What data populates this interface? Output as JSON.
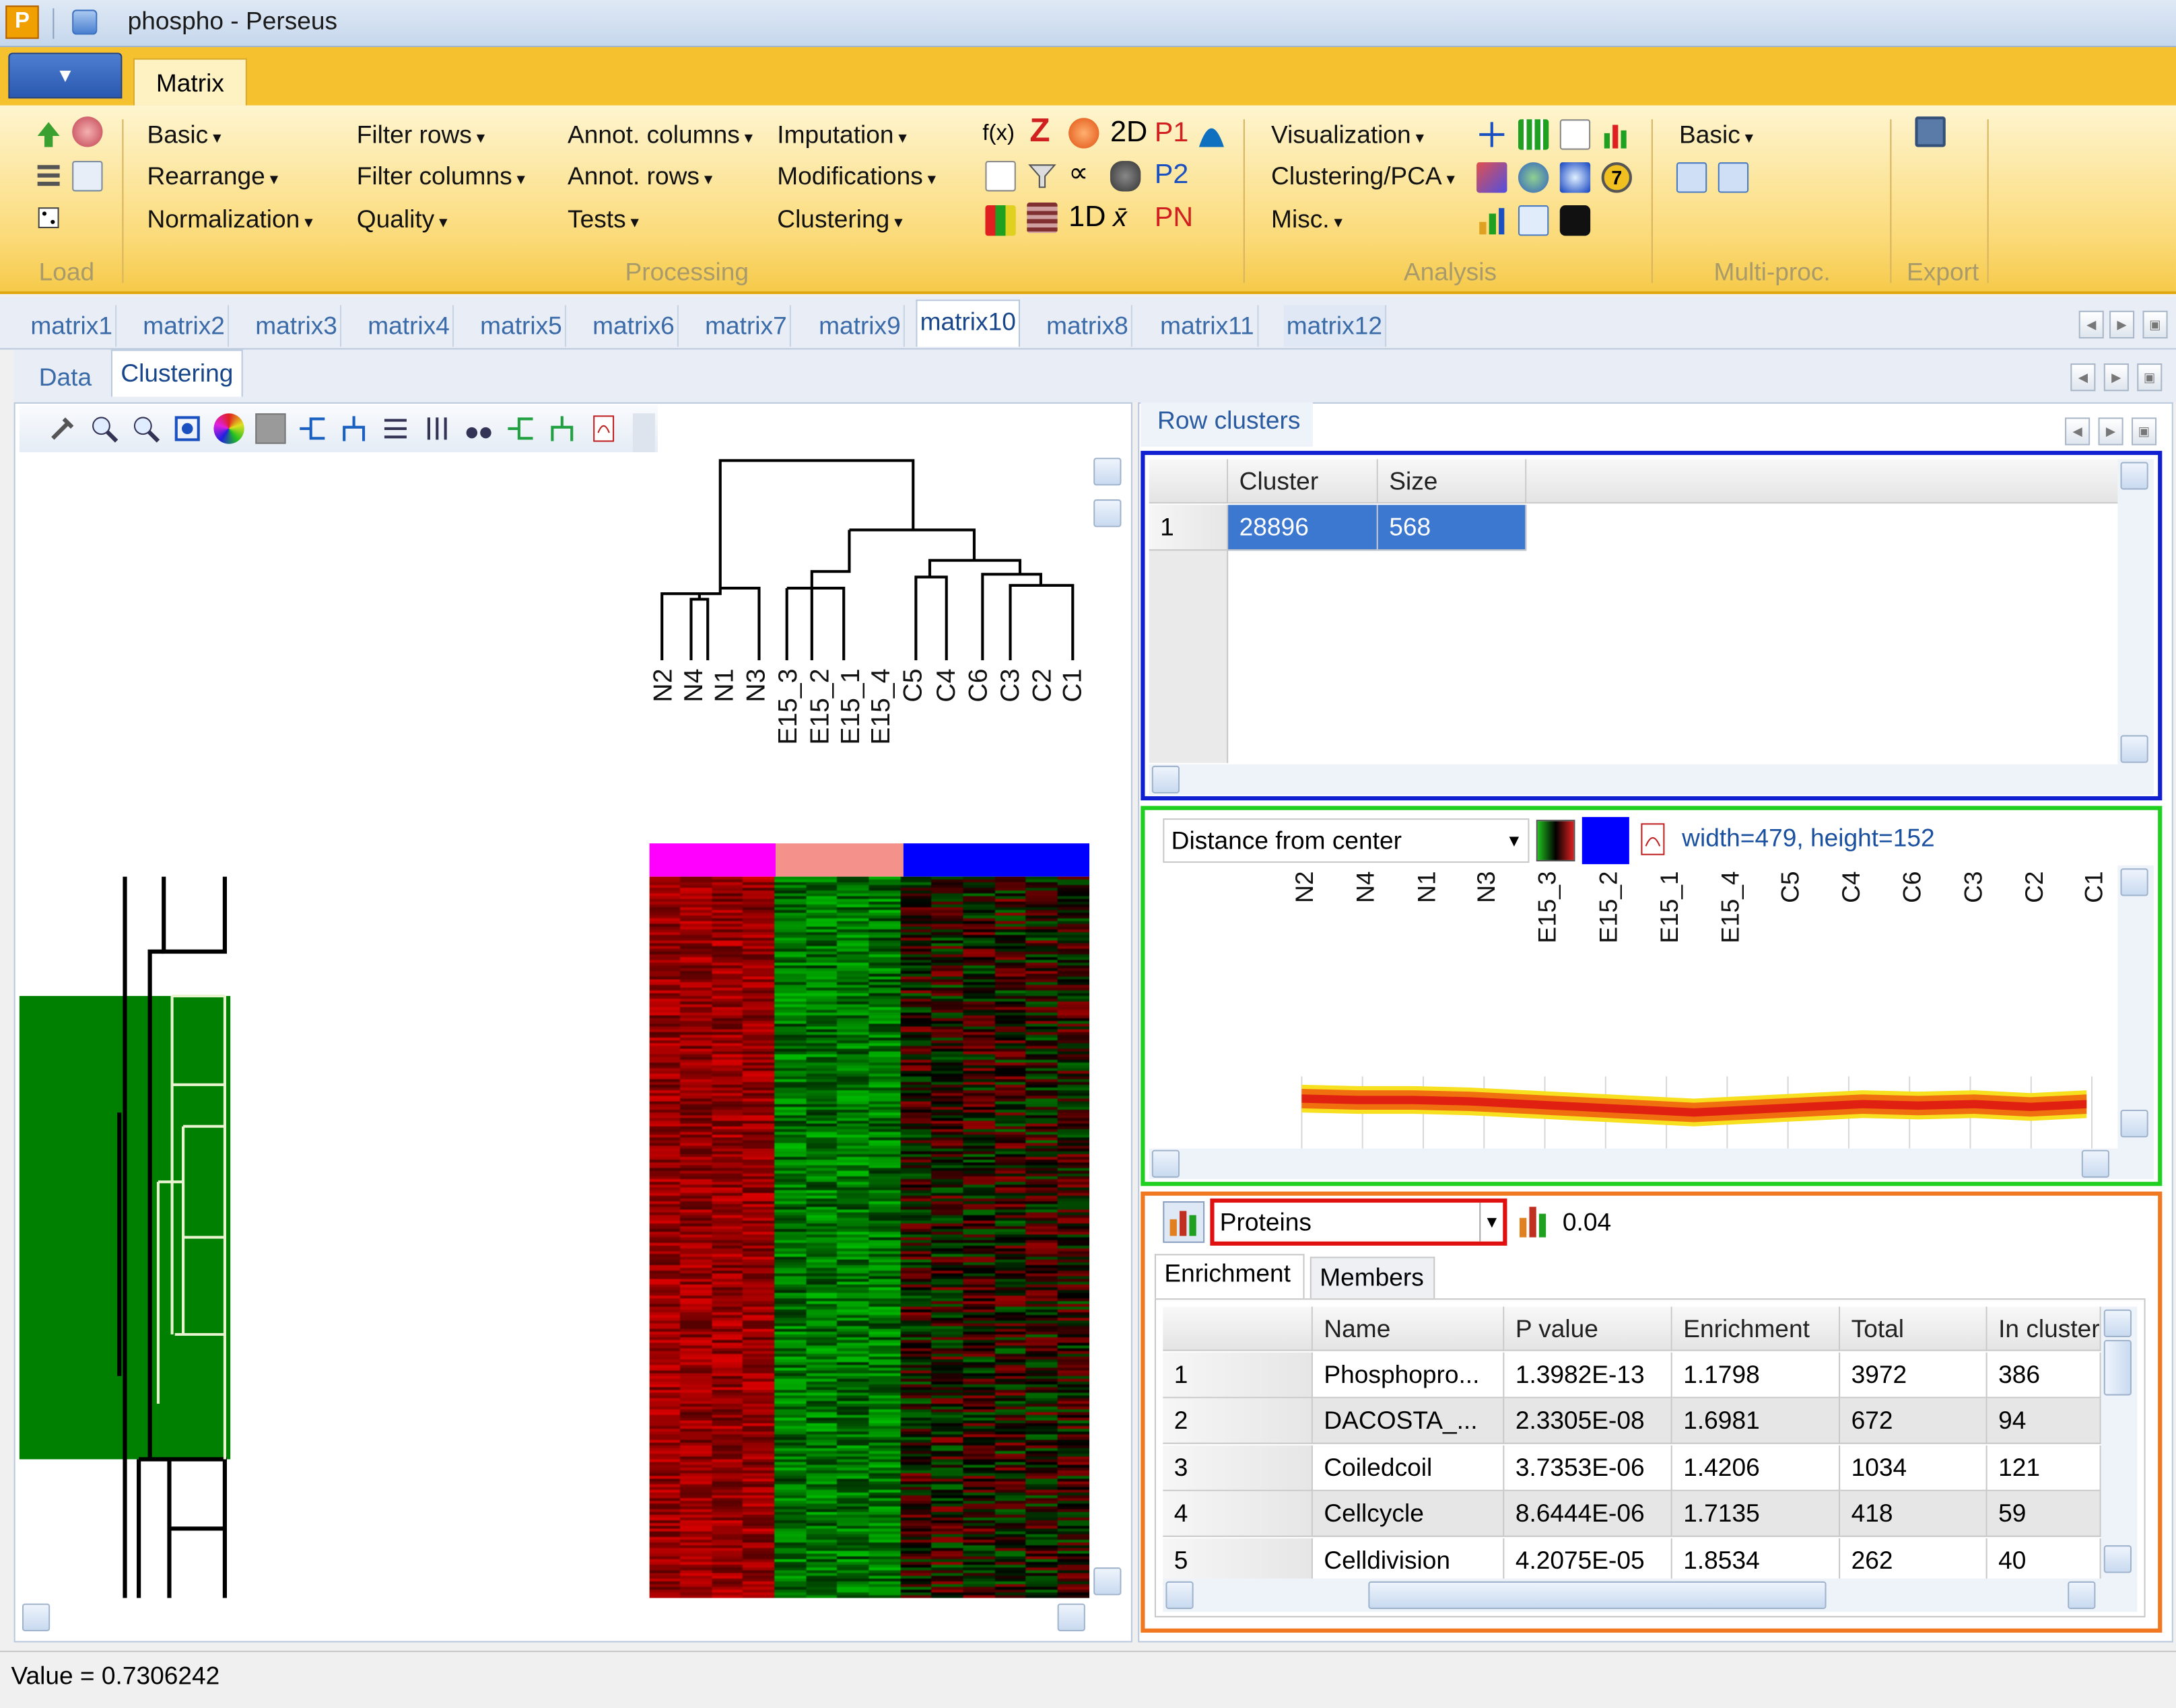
{
  "window": {
    "title": "phospho  -  Perseus",
    "app_icon_letter": "P"
  },
  "ribbon": {
    "tab": "Matrix",
    "load": {
      "label": "Load"
    },
    "processing": {
      "label": "Processing",
      "col1": [
        "Basic",
        "Rearrange",
        "Normalization"
      ],
      "col2": [
        "Filter rows",
        "Filter columns",
        "Quality"
      ],
      "col3": [
        "Annot. columns",
        "Annot. rows",
        "Tests"
      ],
      "col4": [
        "Imputation",
        "Modifications",
        "Clustering"
      ],
      "icon_text": [
        "f(x)",
        "Z",
        "2D",
        "P1",
        "P2",
        "PN",
        "1D",
        "x̄"
      ]
    },
    "analysis": {
      "label": "Analysis",
      "items": [
        "Visualization",
        "Clustering/PCA",
        "Misc."
      ]
    },
    "multiproc": {
      "label": "Multi-proc.",
      "items": [
        "Basic"
      ]
    },
    "export": {
      "label": "Export"
    }
  },
  "matrix_tabs": [
    "matrix1",
    "matrix2",
    "matrix3",
    "matrix4",
    "matrix5",
    "matrix6",
    "matrix7",
    "matrix9",
    "matrix10",
    "matrix8",
    "matrix11",
    "matrix12"
  ],
  "active_matrix_tab": "matrix10",
  "sub_tabs": [
    "Data",
    "Clustering"
  ],
  "active_sub_tab": "Clustering",
  "heatmap": {
    "column_labels": [
      "N2",
      "N4",
      "N1",
      "N3",
      "E15_3",
      "E15_2",
      "E15_1",
      "E15_4",
      "C5",
      "C4",
      "C6",
      "C3",
      "C2",
      "C1"
    ],
    "group_colors": [
      "#ff00ff",
      "#f4918b",
      "#0000ff"
    ],
    "selected_cluster_color": "#008000"
  },
  "row_clusters": {
    "tab": "Row clusters",
    "headers": [
      "Cluster",
      "Size"
    ],
    "rows": [
      {
        "num": "1",
        "cluster": "28896",
        "size": "568"
      }
    ]
  },
  "profile": {
    "mode": "Distance from center",
    "size_text": "width=479, height=152",
    "column_labels": [
      "N2",
      "N4",
      "N1",
      "N3",
      "E15_3",
      "E15_2",
      "E15_1",
      "E15_4",
      "C5",
      "C4",
      "C6",
      "C3",
      "C2",
      "C1"
    ]
  },
  "enrichment": {
    "category": "Proteins",
    "threshold": "0.04",
    "tabs": [
      "Enrichment",
      "Members"
    ],
    "headers": [
      "Name",
      "P value",
      "Enrichment",
      "Total",
      "In cluster"
    ],
    "rows": [
      {
        "num": "1",
        "name": "Phosphopro...",
        "p": "1.3982E-13",
        "enr": "1.1798",
        "total": "3972",
        "inc": "386"
      },
      {
        "num": "2",
        "name": "DACOSTA_...",
        "p": "2.3305E-08",
        "enr": "1.6981",
        "total": "672",
        "inc": "94"
      },
      {
        "num": "3",
        "name": "Coiledcoil",
        "p": "3.7353E-06",
        "enr": "1.4206",
        "total": "1034",
        "inc": "121"
      },
      {
        "num": "4",
        "name": "Cellcycle",
        "p": "8.6444E-06",
        "enr": "1.7135",
        "total": "418",
        "inc": "59"
      },
      {
        "num": "5",
        "name": "Celldivision",
        "p": "4.2075E-05",
        "enr": "1.8534",
        "total": "262",
        "inc": "40"
      }
    ]
  },
  "status": {
    "text": "Value = 0.7306242"
  }
}
